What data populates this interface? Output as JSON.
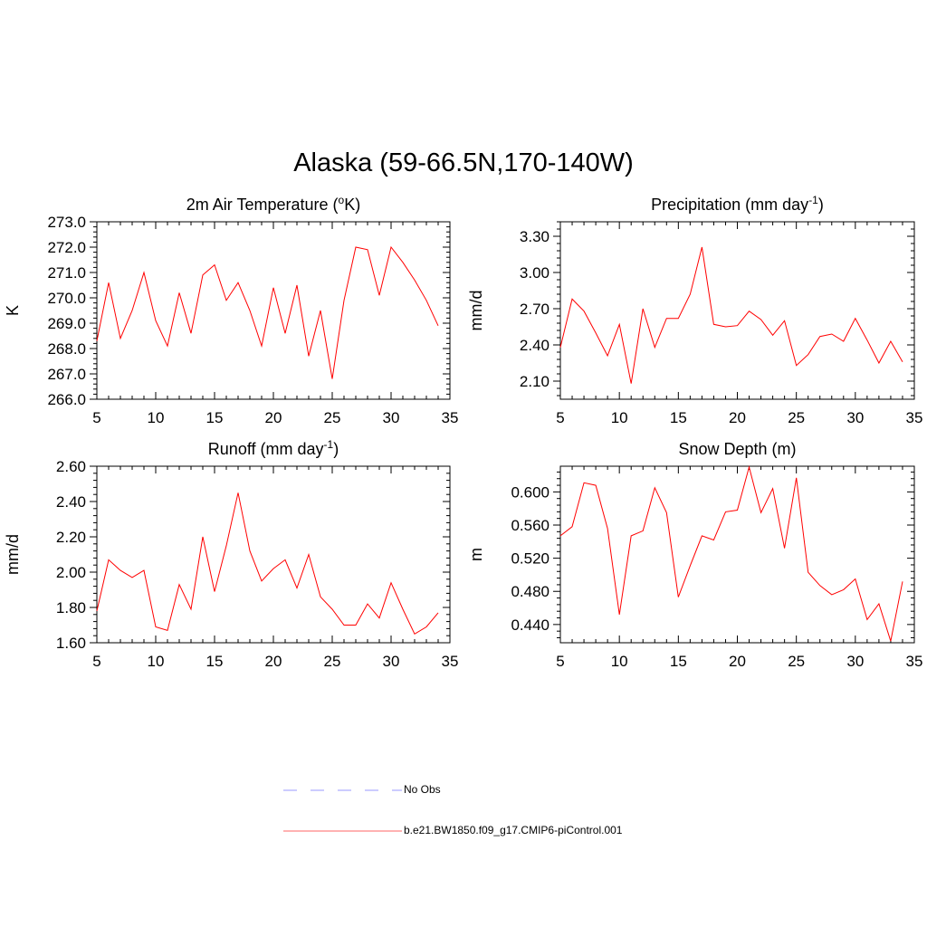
{
  "title": "Alaska (59-66.5N,170-140W)",
  "legend": {
    "items": [
      {
        "label": "No Obs",
        "color": "#9999ff",
        "style": "dashed"
      },
      {
        "label": "b.e21.BW1850.f09_g17.CMIP6-piControl.001",
        "color": "#ff6666",
        "style": "solid"
      }
    ]
  },
  "chart_data": [
    {
      "type": "line",
      "title_parts": [
        "2m Air Temperature (",
        "o",
        "K)"
      ],
      "ylabel": "K",
      "xlim": [
        5,
        35
      ],
      "ylim": [
        266.0,
        273.0
      ],
      "xticks": [
        5,
        10,
        15,
        20,
        25,
        30,
        35
      ],
      "yticks": [
        266.0,
        267.0,
        268.0,
        269.0,
        270.0,
        271.0,
        272.0,
        273.0
      ],
      "ydecimals": 1,
      "color": "#ff0000",
      "x": [
        5,
        6,
        7,
        8,
        9,
        10,
        11,
        12,
        13,
        14,
        15,
        16,
        17,
        18,
        19,
        20,
        21,
        22,
        23,
        24,
        25,
        26,
        27,
        28,
        29,
        30,
        31,
        32,
        33,
        34
      ],
      "values": [
        268.3,
        270.6,
        268.4,
        269.5,
        271.0,
        269.1,
        268.1,
        270.2,
        268.6,
        270.9,
        271.3,
        269.9,
        270.6,
        269.5,
        268.1,
        270.4,
        268.6,
        270.5,
        267.7,
        269.5,
        266.8,
        269.9,
        272.0,
        271.9,
        270.1,
        272.0,
        271.4,
        270.7,
        269.9,
        268.9
      ]
    },
    {
      "type": "line",
      "title_parts": [
        "Precipitation (mm day",
        "-1",
        ")"
      ],
      "ylabel": "mm/d",
      "xlim": [
        5,
        35
      ],
      "ylim": [
        1.95,
        3.42
      ],
      "xticks": [
        5,
        10,
        15,
        20,
        25,
        30,
        35
      ],
      "yticks": [
        2.1,
        2.4,
        2.7,
        3.0,
        3.3
      ],
      "ydecimals": 2,
      "color": "#ff0000",
      "x": [
        5,
        6,
        7,
        8,
        9,
        10,
        11,
        12,
        13,
        14,
        15,
        16,
        17,
        18,
        19,
        20,
        21,
        22,
        23,
        24,
        25,
        26,
        27,
        28,
        29,
        30,
        31,
        32,
        33,
        34
      ],
      "values": [
        2.38,
        2.78,
        2.68,
        2.5,
        2.31,
        2.57,
        2.08,
        2.7,
        2.38,
        2.62,
        2.62,
        2.82,
        3.21,
        2.57,
        2.55,
        2.56,
        2.68,
        2.61,
        2.48,
        2.6,
        2.23,
        2.32,
        2.47,
        2.49,
        2.43,
        2.62,
        2.44,
        2.25,
        2.43,
        2.26
      ]
    },
    {
      "type": "line",
      "title_parts": [
        "Runoff (mm day",
        "-1",
        ")"
      ],
      "ylabel": "mm/d",
      "xlim": [
        5,
        35
      ],
      "ylim": [
        1.6,
        2.6
      ],
      "xticks": [
        5,
        10,
        15,
        20,
        25,
        30,
        35
      ],
      "yticks": [
        1.6,
        1.8,
        2.0,
        2.2,
        2.4,
        2.6
      ],
      "ydecimals": 2,
      "color": "#ff0000",
      "x": [
        5,
        6,
        7,
        8,
        9,
        10,
        11,
        12,
        13,
        14,
        15,
        16,
        17,
        18,
        19,
        20,
        21,
        22,
        23,
        24,
        25,
        26,
        27,
        28,
        29,
        30,
        31,
        32,
        33,
        34
      ],
      "values": [
        1.78,
        2.07,
        2.01,
        1.97,
        2.01,
        1.69,
        1.67,
        1.93,
        1.79,
        2.2,
        1.89,
        2.15,
        2.45,
        2.12,
        1.95,
        2.02,
        2.07,
        1.91,
        2.1,
        1.86,
        1.79,
        1.7,
        1.7,
        1.82,
        1.74,
        1.94,
        1.79,
        1.65,
        1.69,
        1.77
      ]
    },
    {
      "type": "line",
      "title_parts": [
        "Snow Depth (m)",
        "",
        ""
      ],
      "ylabel": "m",
      "xlim": [
        5,
        35
      ],
      "ylim": [
        0.418,
        0.631
      ],
      "xticks": [
        5,
        10,
        15,
        20,
        25,
        30,
        35
      ],
      "yticks": [
        0.44,
        0.48,
        0.52,
        0.56,
        0.6
      ],
      "ydecimals": 3,
      "color": "#ff0000",
      "x": [
        5,
        6,
        7,
        8,
        9,
        10,
        11,
        12,
        13,
        14,
        15,
        16,
        17,
        18,
        19,
        20,
        21,
        22,
        23,
        24,
        25,
        26,
        27,
        28,
        29,
        30,
        31,
        32,
        33,
        34
      ],
      "values": [
        0.547,
        0.558,
        0.611,
        0.608,
        0.556,
        0.452,
        0.547,
        0.553,
        0.605,
        0.575,
        0.473,
        0.511,
        0.547,
        0.542,
        0.576,
        0.578,
        0.63,
        0.575,
        0.604,
        0.532,
        0.617,
        0.503,
        0.487,
        0.476,
        0.482,
        0.495,
        0.446,
        0.465,
        0.42,
        0.492
      ]
    }
  ]
}
